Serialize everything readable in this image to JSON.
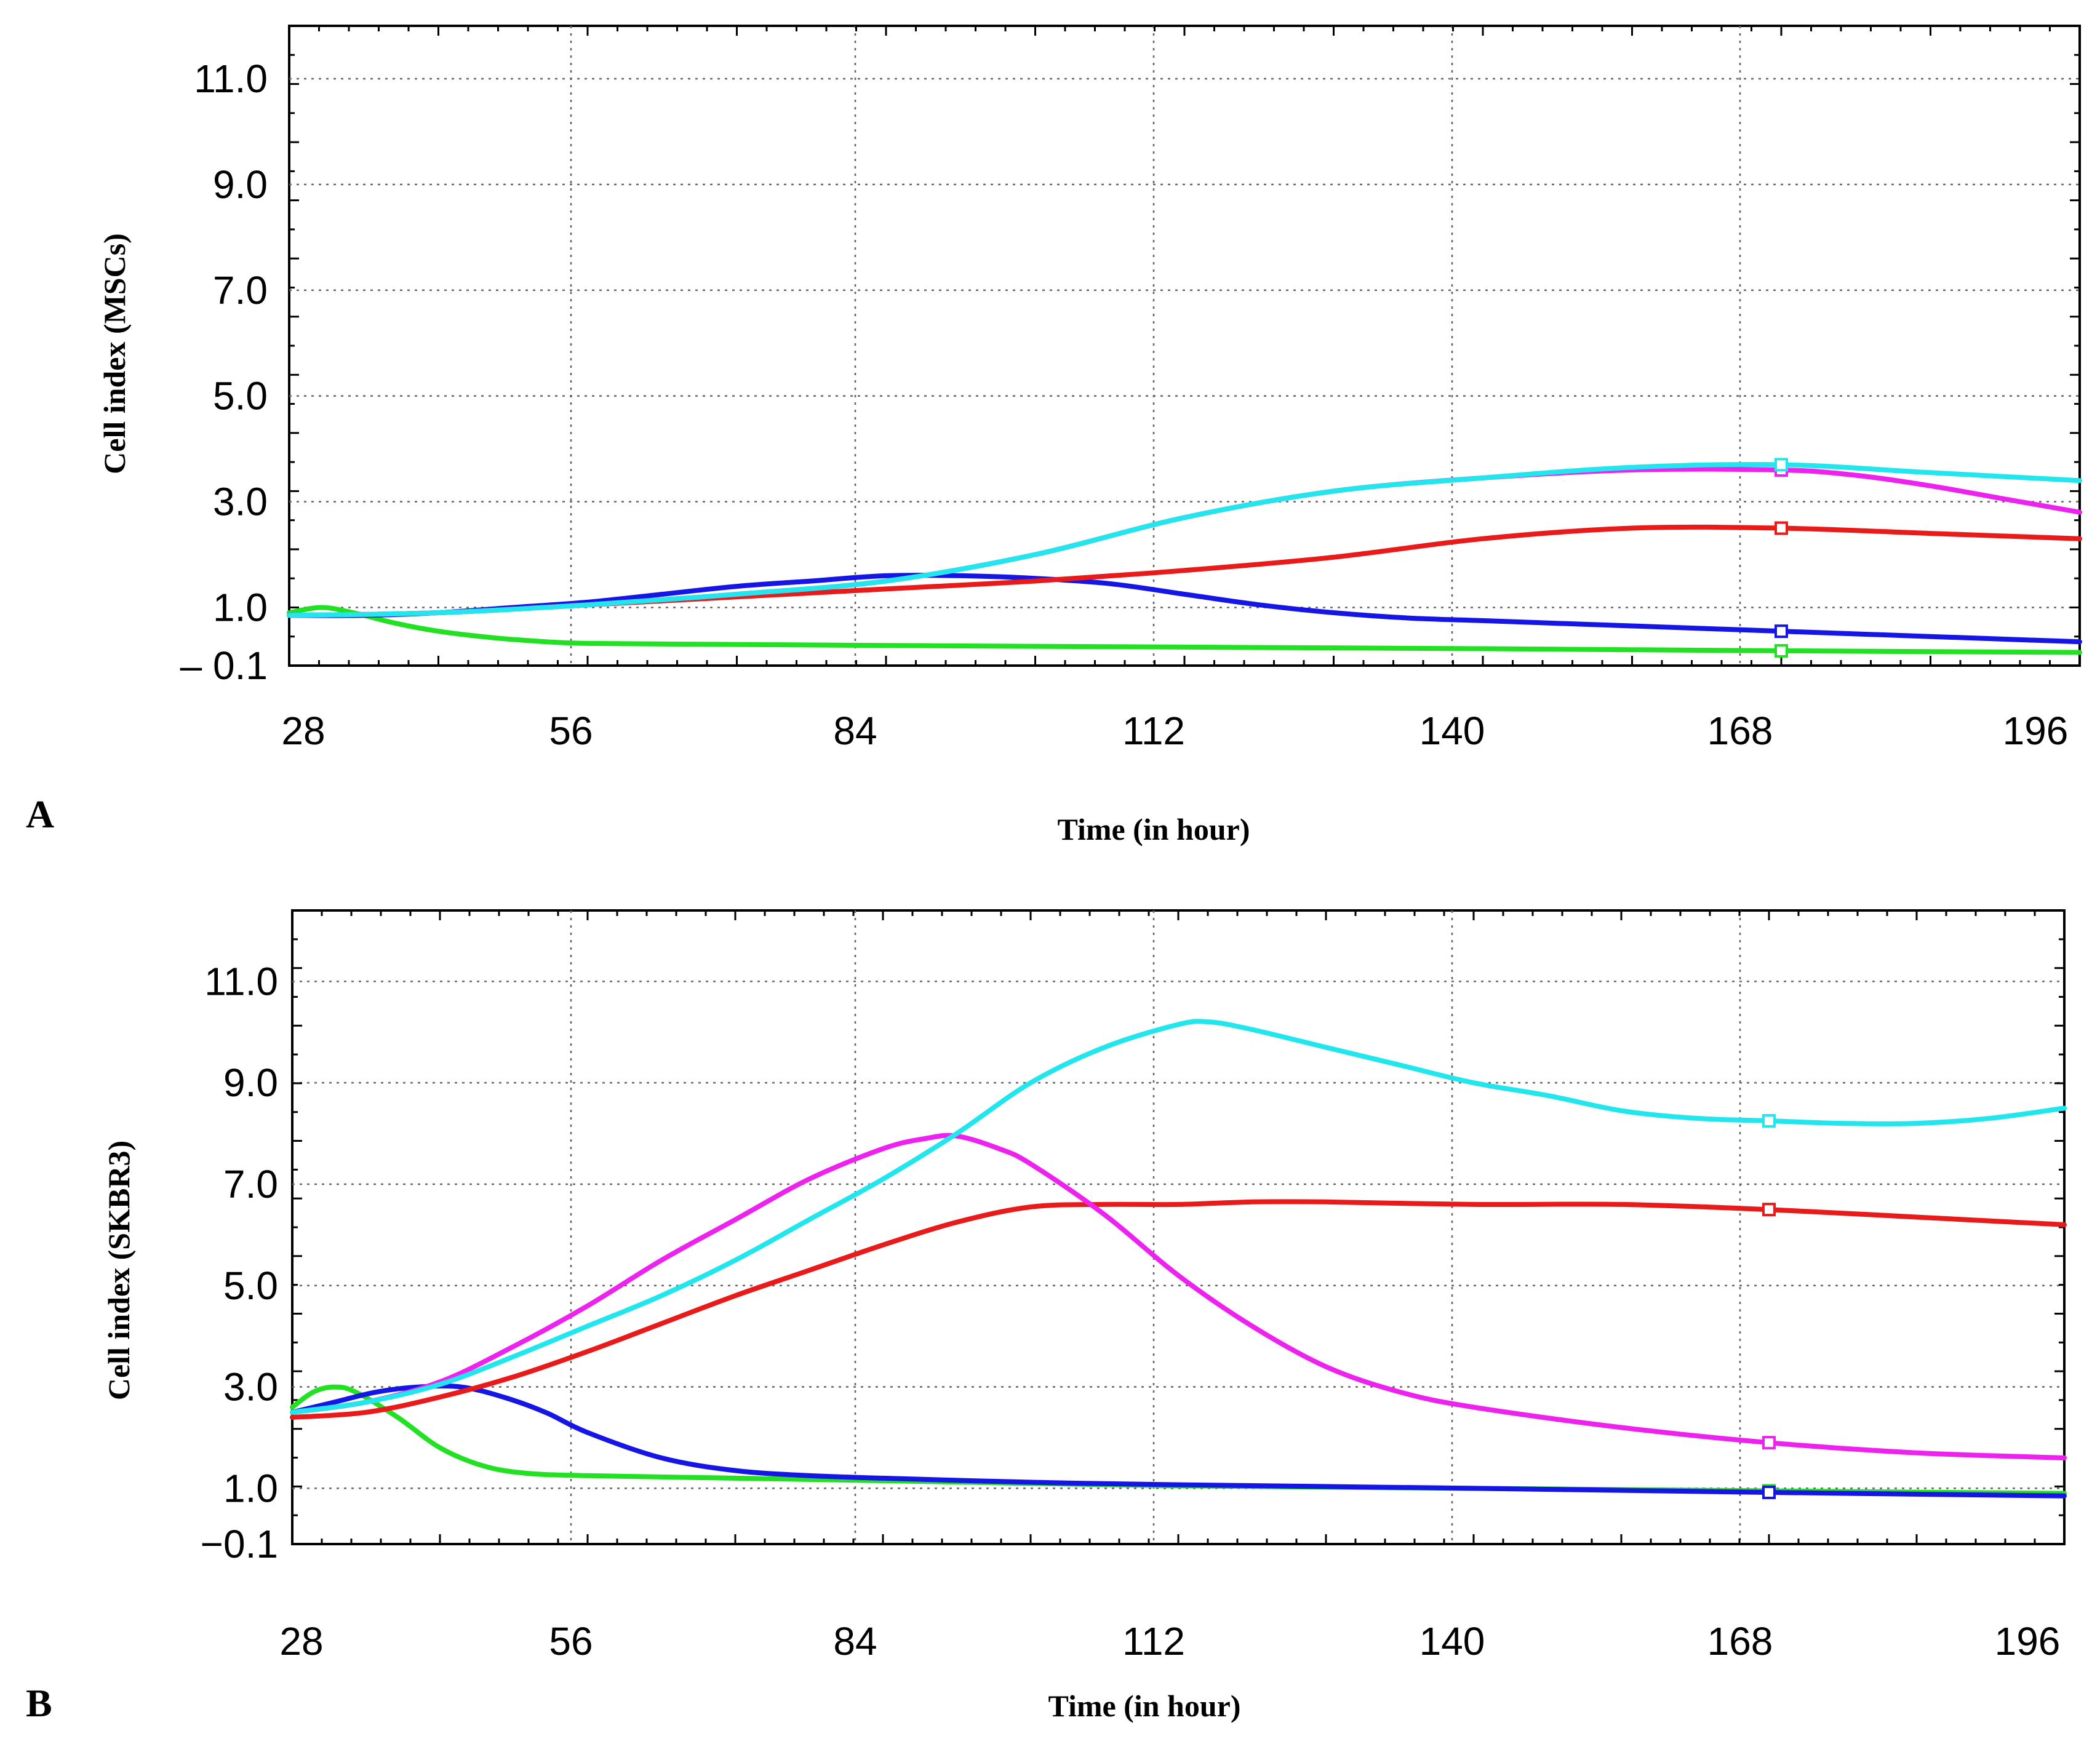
{
  "chart_data": [
    {
      "type": "line",
      "panel_label": "A",
      "title": "",
      "xlabel": "Time (in hour)",
      "ylabel": "Cell  index  (MSCs)",
      "xlim": [
        28,
        196
      ],
      "ylim": [
        -0.1,
        12.0
      ],
      "x_ticks": [
        "28",
        "56",
        "84",
        "112",
        "140",
        "168",
        "196"
      ],
      "y_ticks": [
        "11.0",
        "9.0",
        "7.0",
        "5.0",
        "3.0",
        "1.0",
        "– 0.1"
      ],
      "grid": true,
      "series": [
        {
          "name": "green",
          "color": "#22e022",
          "marker_x": 168,
          "x": [
            28,
            31,
            34,
            38,
            42,
            46,
            50,
            56,
            70,
            84,
            112,
            140,
            168,
            196
          ],
          "y": [
            0.9,
            1.0,
            0.9,
            0.7,
            0.55,
            0.45,
            0.38,
            0.32,
            0.3,
            0.28,
            0.25,
            0.22,
            0.18,
            0.15
          ]
        },
        {
          "name": "blue",
          "color": "#1515e6",
          "marker_x": 168,
          "x": [
            28,
            35,
            42,
            49,
            56,
            63,
            70,
            77,
            84,
            91,
            98,
            105,
            112,
            119,
            126,
            133,
            140,
            154,
            168,
            182,
            196
          ],
          "y": [
            0.85,
            0.85,
            0.9,
            1.0,
            1.1,
            1.25,
            1.4,
            1.5,
            1.6,
            1.6,
            1.55,
            1.45,
            1.25,
            1.05,
            0.9,
            0.8,
            0.75,
            0.65,
            0.55,
            0.45,
            0.35
          ]
        },
        {
          "name": "red",
          "color": "#e81a1a",
          "marker_x": 168,
          "x": [
            28,
            42,
            56,
            70,
            84,
            98,
            112,
            126,
            140,
            154,
            168,
            182,
            196
          ],
          "y": [
            0.85,
            0.9,
            1.05,
            1.2,
            1.35,
            1.5,
            1.7,
            1.95,
            2.3,
            2.5,
            2.5,
            2.4,
            2.3
          ]
        },
        {
          "name": "magenta",
          "color": "#ee22ee",
          "marker_x": 168,
          "x": [
            28,
            42,
            56,
            70,
            84,
            98,
            112,
            126,
            140,
            154,
            168,
            175,
            182,
            189,
            196
          ],
          "y": [
            0.85,
            0.9,
            1.05,
            1.25,
            1.5,
            2.0,
            2.7,
            3.2,
            3.45,
            3.6,
            3.6,
            3.5,
            3.3,
            3.05,
            2.8
          ]
        },
        {
          "name": "cyan",
          "color": "#22e6ee",
          "marker_x": 168,
          "x": [
            28,
            42,
            56,
            70,
            84,
            98,
            112,
            126,
            140,
            154,
            168,
            182,
            196
          ],
          "y": [
            0.85,
            0.9,
            1.05,
            1.25,
            1.5,
            2.0,
            2.7,
            3.2,
            3.45,
            3.65,
            3.7,
            3.55,
            3.4
          ]
        }
      ]
    },
    {
      "type": "line",
      "panel_label": "B",
      "title": "",
      "xlabel": "Time (in hour)",
      "ylabel": "Cell  index  (SKBR3)",
      "xlim": [
        28,
        196
      ],
      "ylim": [
        -0.1,
        12.4
      ],
      "x_ticks": [
        "28",
        "56",
        "84",
        "112",
        "140",
        "168",
        "196"
      ],
      "y_ticks": [
        "11.0",
        "9.0",
        "7.0",
        "5.0",
        "3.0",
        "1.0",
        "−0.1"
      ],
      "grid": true,
      "series": [
        {
          "name": "green",
          "color": "#22e022",
          "marker_x": 168,
          "x": [
            28,
            30,
            32,
            34,
            38,
            42,
            46,
            50,
            56,
            70,
            84,
            112,
            140,
            168,
            196
          ],
          "y": [
            2.6,
            2.9,
            3.0,
            2.9,
            2.4,
            1.8,
            1.45,
            1.3,
            1.25,
            1.2,
            1.15,
            1.05,
            1.0,
            0.95,
            0.9
          ]
        },
        {
          "name": "blue",
          "color": "#1515e6",
          "marker_x": 168,
          "x": [
            28,
            32,
            36,
            40,
            44,
            48,
            52,
            56,
            63,
            70,
            77,
            84,
            98,
            112,
            140,
            168,
            196
          ],
          "y": [
            2.5,
            2.7,
            2.9,
            3.0,
            3.0,
            2.8,
            2.5,
            2.1,
            1.6,
            1.35,
            1.25,
            1.2,
            1.12,
            1.07,
            1.0,
            0.92,
            0.85
          ]
        },
        {
          "name": "red",
          "color": "#e81a1a",
          "marker_x": 168,
          "x": [
            28,
            35,
            42,
            49,
            56,
            63,
            70,
            77,
            84,
            91,
            98,
            105,
            112,
            119,
            126,
            140,
            154,
            168,
            182,
            196
          ],
          "y": [
            2.4,
            2.5,
            2.8,
            3.2,
            3.7,
            4.25,
            4.8,
            5.3,
            5.8,
            6.25,
            6.55,
            6.6,
            6.6,
            6.65,
            6.65,
            6.6,
            6.6,
            6.5,
            6.35,
            6.2
          ]
        },
        {
          "name": "magenta",
          "color": "#ee22ee",
          "marker_x": 168,
          "x": [
            28,
            35,
            42,
            49,
            56,
            63,
            70,
            77,
            84,
            88,
            91,
            95,
            98,
            105,
            112,
            119,
            126,
            133,
            140,
            154,
            168,
            182,
            196
          ],
          "y": [
            2.5,
            2.7,
            3.1,
            3.8,
            4.6,
            5.5,
            6.3,
            7.1,
            7.7,
            7.9,
            7.95,
            7.7,
            7.4,
            6.4,
            5.2,
            4.2,
            3.4,
            2.9,
            2.6,
            2.2,
            1.9,
            1.7,
            1.6
          ]
        },
        {
          "name": "cyan",
          "color": "#22e6ee",
          "marker_x": 168,
          "x": [
            28,
            35,
            42,
            49,
            56,
            63,
            70,
            77,
            84,
            91,
            98,
            105,
            112,
            115,
            119,
            126,
            133,
            140,
            147,
            154,
            161,
            168,
            175,
            182,
            189,
            196
          ],
          "y": [
            2.5,
            2.7,
            3.05,
            3.6,
            4.2,
            4.8,
            5.5,
            6.3,
            7.1,
            8.0,
            9.0,
            9.7,
            10.15,
            10.2,
            10.05,
            9.7,
            9.35,
            9.0,
            8.75,
            8.45,
            8.3,
            8.25,
            8.2,
            8.2,
            8.3,
            8.5
          ]
        }
      ]
    }
  ]
}
